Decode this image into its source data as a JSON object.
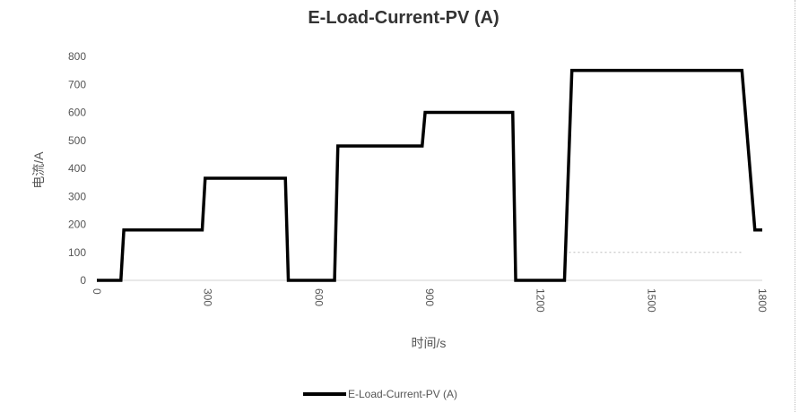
{
  "chart_data": {
    "type": "line",
    "title": "E-Load-Current-PV (A)",
    "xlabel": "时间/s",
    "ylabel": "电流/A",
    "xlim": [
      0,
      1800
    ],
    "ylim": [
      0,
      800
    ],
    "xticks": [
      0,
      300,
      600,
      900,
      1200,
      1500,
      1800
    ],
    "yticks": [
      0,
      100,
      200,
      300,
      400,
      500,
      600,
      700,
      800
    ],
    "grid": false,
    "legend": "bottom",
    "series": [
      {
        "name": "E-Load-Current-PV (A)",
        "color": "#000000",
        "x": [
          0,
          65,
          73,
          285,
          293,
          510,
          518,
          643,
          652,
          880,
          888,
          1125,
          1133,
          1265,
          1285,
          1745,
          1780,
          1800
        ],
        "y": [
          0,
          0,
          180,
          180,
          365,
          365,
          0,
          0,
          480,
          480,
          600,
          600,
          0,
          0,
          750,
          750,
          180,
          180
        ]
      }
    ],
    "annotations": [
      {
        "type": "dotted-line",
        "color": "#bbbbbb",
        "x": [
          1265,
          1750
        ],
        "y": [
          100,
          100
        ]
      }
    ]
  }
}
